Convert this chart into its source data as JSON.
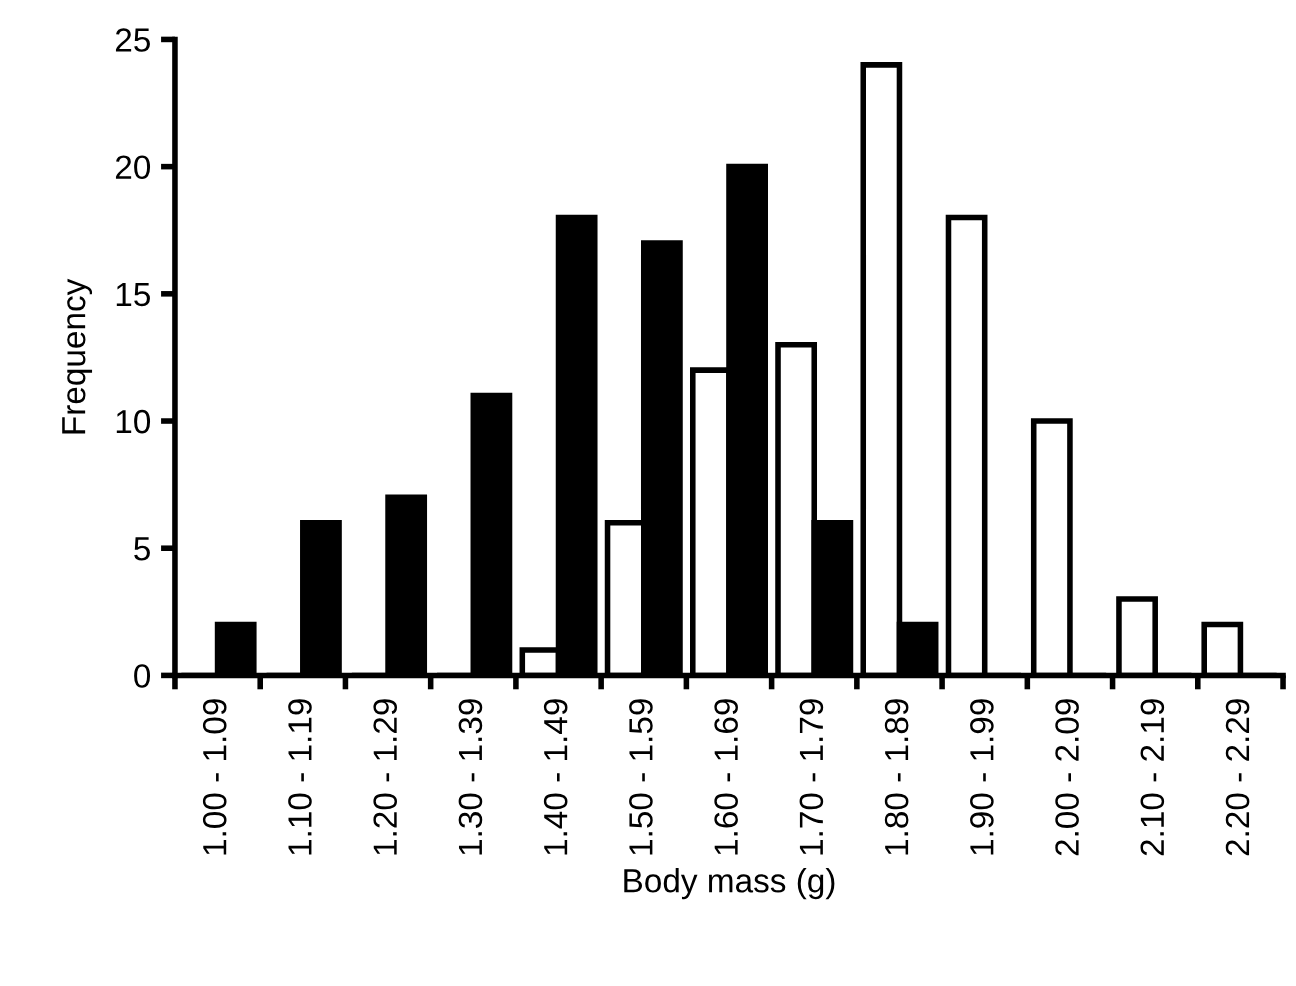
{
  "chart_data": {
    "type": "bar",
    "xlabel": "Body mass (g)",
    "ylabel": "Frequency",
    "categories": [
      "1.00 - 1.09",
      "1.10 - 1.19",
      "1.20 - 1.29",
      "1.30 - 1.39",
      "1.40 - 1.49",
      "1.50 - 1.59",
      "1.60 - 1.69",
      "1.70 - 1.79",
      "1.80 - 1.89",
      "1.90 - 1.99",
      "2.00 - 2.09",
      "2.10 - 2.19",
      "2.20 - 2.29"
    ],
    "series": [
      {
        "color": "#ffffff",
        "values": [
          0,
          0,
          0,
          0,
          1,
          6,
          12,
          13,
          24,
          18,
          10,
          3,
          2
        ]
      },
      {
        "color": "#000000",
        "values": [
          2,
          6,
          7,
          11,
          18,
          17,
          20,
          6,
          2,
          0,
          0,
          0,
          0
        ]
      }
    ],
    "ylim": [
      0,
      25
    ],
    "yticks": [
      0,
      5,
      10,
      15,
      20,
      25
    ],
    "grid": false
  }
}
